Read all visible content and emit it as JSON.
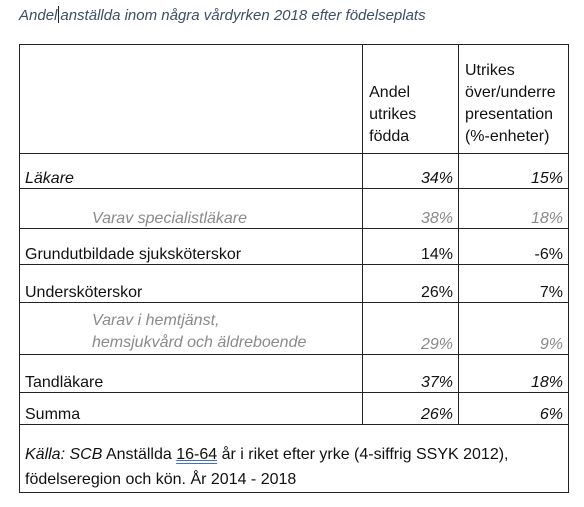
{
  "document": {
    "title_part1": "Andel",
    "title_part2": "anställda inom några vårdyrken 2018 efter födelseplats"
  },
  "table": {
    "headers": {
      "col1": "",
      "col2": "Andel utrikes födda",
      "col3": "Utrikes över/underre presentation (%-enheter)"
    },
    "rows": [
      {
        "label": "Läkare",
        "andel": "34%",
        "over": "15%"
      },
      {
        "label": "Varav specialistläkare",
        "andel": "38%",
        "over": "18%"
      },
      {
        "label": "Grundutbildade sjuksköterskor",
        "andel": "14%",
        "over": "-6%"
      },
      {
        "label": "Undersköterskor",
        "andel": "26%",
        "over": "7%"
      },
      {
        "label_line1": "Varav i hemtjänst,",
        "label_line2": "hemsjukvård och äldreboende",
        "andel": "29%",
        "over": "9%"
      },
      {
        "label": "Tandläkare",
        "andel": "37%",
        "over": "18%"
      },
      {
        "label": "Summa",
        "andel": "26%",
        "over": "6%"
      }
    ],
    "source": {
      "prefix": "Källa: SCB",
      "text_a": " Anställda ",
      "underlined": "16-64",
      "text_b": " år i riket efter yrke (4-siffrig SSYK 2012), födelseregion och kön. År 2014 - 2018"
    }
  }
}
